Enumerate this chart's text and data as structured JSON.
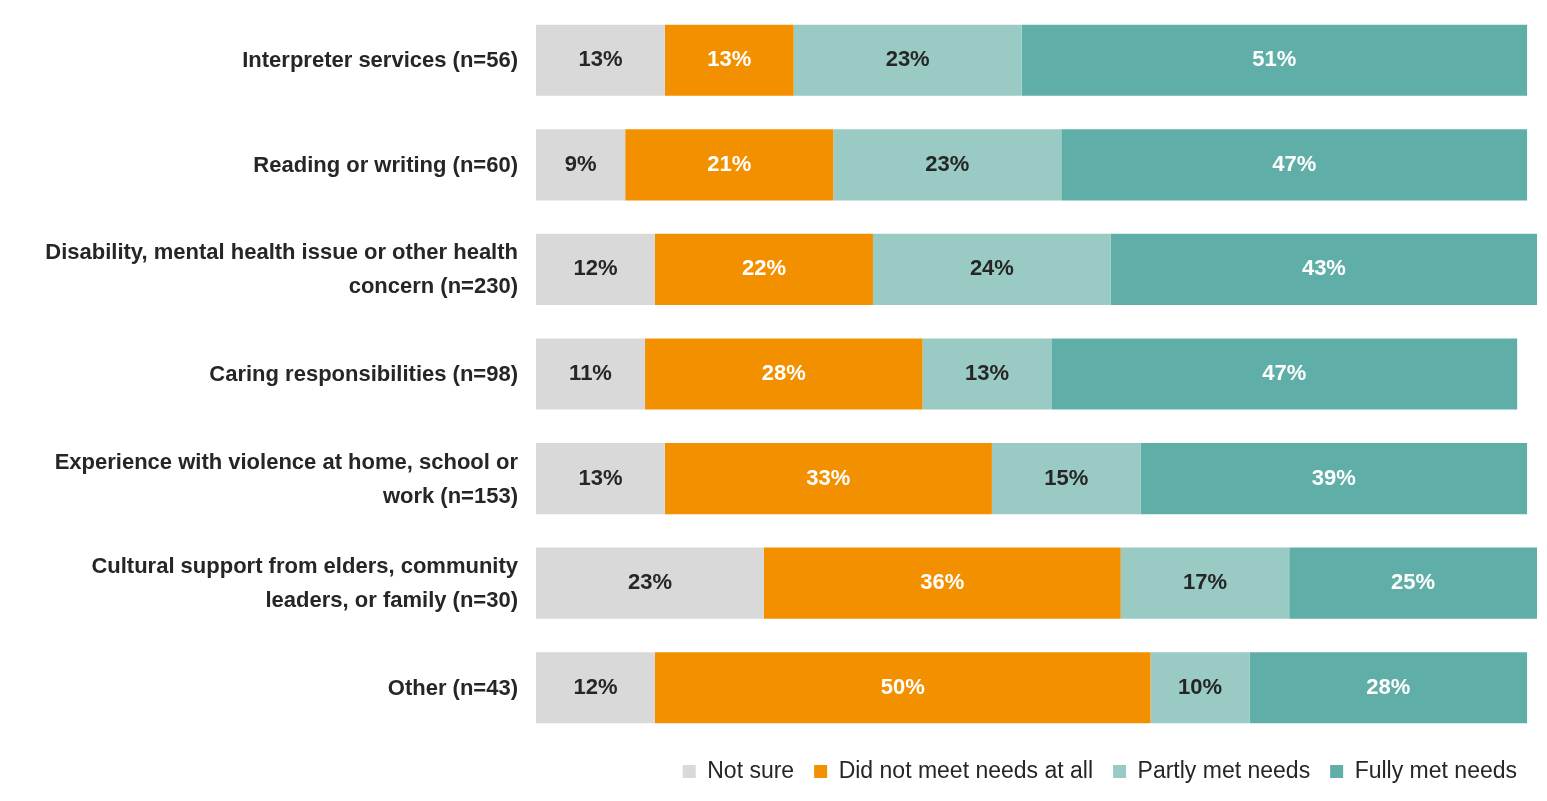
{
  "chart_data": {
    "type": "bar",
    "orientation": "horizontal",
    "stacked": true,
    "legend": "bottom",
    "categories": [
      "Interpreter services (n=56)",
      "Reading or writing (n=60)",
      "Disability, mental health issue or other health concern (n=230)",
      "Caring responsibilities (n=98)",
      "Experience with violence at home, school or work (n=153)",
      "Cultural support from elders, community leaders, or family (n=30)",
      "Other (n=43)"
    ],
    "series": [
      {
        "name": "Not sure",
        "color": "#d9d9d9",
        "values": [
          13,
          9,
          12,
          11,
          13,
          23,
          12
        ],
        "value_labels": [
          "13%",
          "9%",
          "12%",
          "11%",
          "13%",
          "23%",
          "12%"
        ]
      },
      {
        "name": "Did not meet needs at all",
        "color": "#f39000",
        "values": [
          13,
          21,
          22,
          28,
          33,
          36,
          50
        ],
        "value_labels": [
          "13%",
          "21%",
          "22%",
          "28%",
          "33%",
          "36%",
          "50%"
        ]
      },
      {
        "name": "Partly met needs",
        "color": "#99cbc4",
        "values": [
          23,
          23,
          24,
          13,
          15,
          17,
          10
        ],
        "value_labels": [
          "23%",
          "23%",
          "24%",
          "13%",
          "15%",
          "17%",
          "10%"
        ]
      },
      {
        "name": "Fully met needs",
        "color": "#5fafa8",
        "values": [
          51,
          47,
          43,
          47,
          39,
          25,
          28
        ],
        "value_labels": [
          "51%",
          "47%",
          "43%",
          "47%",
          "39%",
          "25%",
          "28%"
        ]
      }
    ]
  }
}
